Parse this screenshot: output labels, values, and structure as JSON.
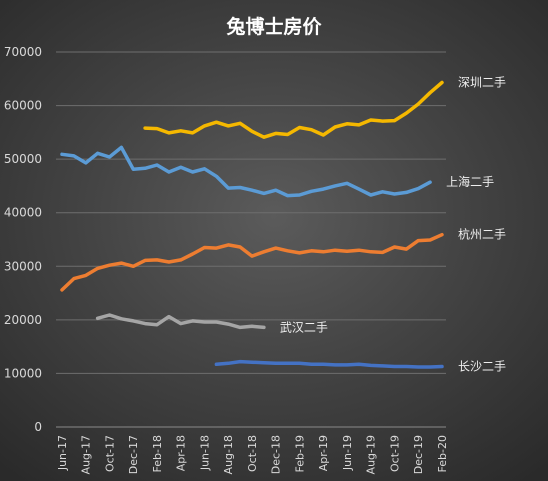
{
  "chart_data": {
    "type": "line",
    "title": "兔博士房价",
    "ylim": [
      0,
      70000
    ],
    "yticks": [
      0,
      10000,
      20000,
      30000,
      40000,
      50000,
      60000,
      70000
    ],
    "grid": true,
    "x": [
      "Jun-17",
      "Jul-17",
      "Aug-17",
      "Sep-17",
      "Oct-17",
      "Nov-17",
      "Dec-17",
      "Jan-18",
      "Feb-18",
      "Mar-18",
      "Apr-18",
      "May-18",
      "Jun-18",
      "Jul-18",
      "Aug-18",
      "Sep-18",
      "Oct-18",
      "Nov-18",
      "Dec-18",
      "Jan-19",
      "Feb-19",
      "Mar-19",
      "Apr-19",
      "May-19",
      "Jun-19",
      "Jul-19",
      "Aug-19",
      "Sep-19",
      "Oct-19",
      "Nov-19",
      "Dec-19",
      "Jan-20",
      "Feb-20"
    ],
    "xtick_labels": [
      "Jun-17",
      "Aug-17",
      "Oct-17",
      "Dec-17",
      "Feb-18",
      "Apr-18",
      "Jun-18",
      "Aug-18",
      "Oct-18",
      "Dec-18",
      "Feb-19",
      "Apr-19",
      "Jun-19",
      "Aug-19",
      "Oct-19",
      "Dec-19",
      "Feb-20"
    ],
    "series": [
      {
        "name": "深圳二手",
        "color": "#f5b800",
        "values": [
          null,
          null,
          null,
          null,
          null,
          null,
          null,
          55800,
          55700,
          54900,
          55300,
          54900,
          56200,
          56900,
          56200,
          56700,
          55200,
          54100,
          54800,
          54600,
          55900,
          55500,
          54500,
          56000,
          56600,
          56400,
          57300,
          57100,
          57200,
          58600,
          60300,
          62400,
          64300
        ]
      },
      {
        "name": "上海二手",
        "color": "#5b9bd5",
        "values": [
          50900,
          50600,
          49300,
          51100,
          50400,
          52200,
          48100,
          48300,
          48900,
          47600,
          48500,
          47600,
          48200,
          46800,
          44600,
          44700,
          44200,
          43600,
          44200,
          43200,
          43300,
          44000,
          44400,
          45000,
          45500,
          44400,
          43300,
          43900,
          43500,
          43800,
          44500,
          45700,
          null
        ]
      },
      {
        "name": "杭州二手",
        "color": "#ed7d31",
        "values": [
          25600,
          27700,
          28300,
          29600,
          30200,
          30600,
          30000,
          31100,
          31200,
          30800,
          31200,
          32300,
          33500,
          33400,
          34000,
          33600,
          31900,
          32700,
          33400,
          32900,
          32500,
          32900,
          32700,
          33000,
          32800,
          33000,
          32700,
          32600,
          33600,
          33200,
          34800,
          34900,
          35900
        ]
      },
      {
        "name": "武汉二手",
        "color": "#a5a5a5",
        "values": [
          null,
          null,
          null,
          20300,
          20900,
          20200,
          19800,
          19300,
          19100,
          20600,
          19300,
          19800,
          19600,
          19600,
          19200,
          18600,
          18800,
          18600,
          null,
          null,
          null,
          null,
          null,
          null,
          null,
          null,
          null,
          null,
          null,
          null,
          null,
          null,
          null
        ]
      },
      {
        "name": "长沙二手",
        "color": "#4472c4",
        "values": [
          null,
          null,
          null,
          null,
          null,
          null,
          null,
          null,
          null,
          null,
          null,
          null,
          null,
          11700,
          11900,
          12200,
          12100,
          12000,
          11900,
          11900,
          11900,
          11700,
          11700,
          11600,
          11600,
          11700,
          11500,
          11400,
          11300,
          11300,
          11200,
          11200,
          11300
        ]
      }
    ]
  }
}
